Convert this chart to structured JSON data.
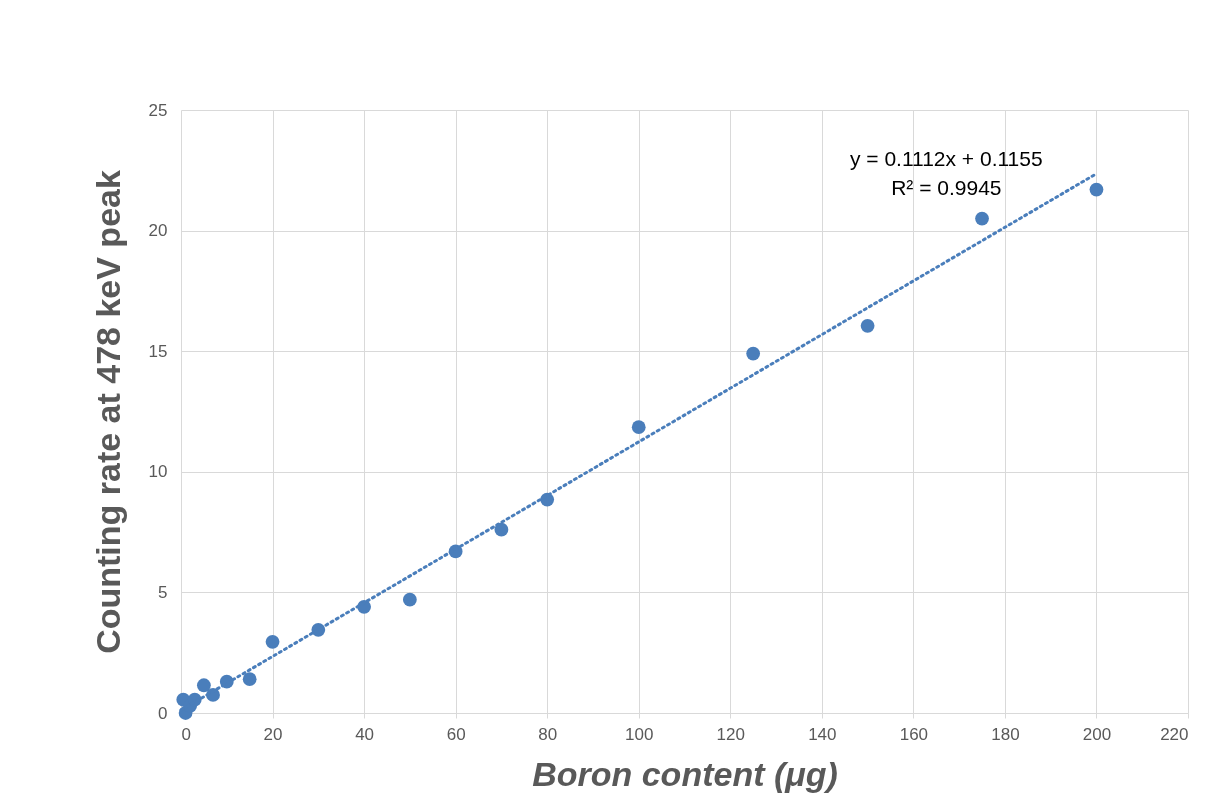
{
  "chart_data": {
    "type": "scatter",
    "xlabel": "Boron content (μg)",
    "ylabel": "Counting rate at 478 keV peak",
    "x": [
      0.5,
      1,
      2,
      3,
      5,
      7,
      10,
      15,
      20,
      30,
      40,
      50,
      60,
      70,
      80,
      100,
      125,
      150,
      175,
      200
    ],
    "series": [
      {
        "color": "#4a7ebb",
        "marker": "circle",
        "values": [
          0.55,
          0.0,
          0.3,
          0.55,
          1.15,
          0.75,
          1.3,
          1.4,
          2.95,
          3.45,
          4.4,
          4.7,
          6.7,
          7.6,
          8.85,
          11.85,
          14.9,
          16.05,
          20.5,
          21.7
        ]
      },
      {
        "type": "line",
        "color": "#4a7ebb",
        "line_style": "dotted",
        "marker": "none",
        "x": [
          0,
          200
        ],
        "values": [
          0.12,
          22.36
        ]
      }
    ],
    "xlim": [
      0,
      220
    ],
    "xticks": [
      0,
      20,
      40,
      60,
      80,
      100,
      120,
      140,
      160,
      180,
      200,
      220
    ],
    "ylim": [
      0,
      25
    ],
    "yticks": [
      0,
      5,
      10,
      15,
      20,
      25
    ],
    "grid": true,
    "annotations": [
      "y = 0.1112x + 0.1155",
      "R² = 0.9945"
    ]
  }
}
